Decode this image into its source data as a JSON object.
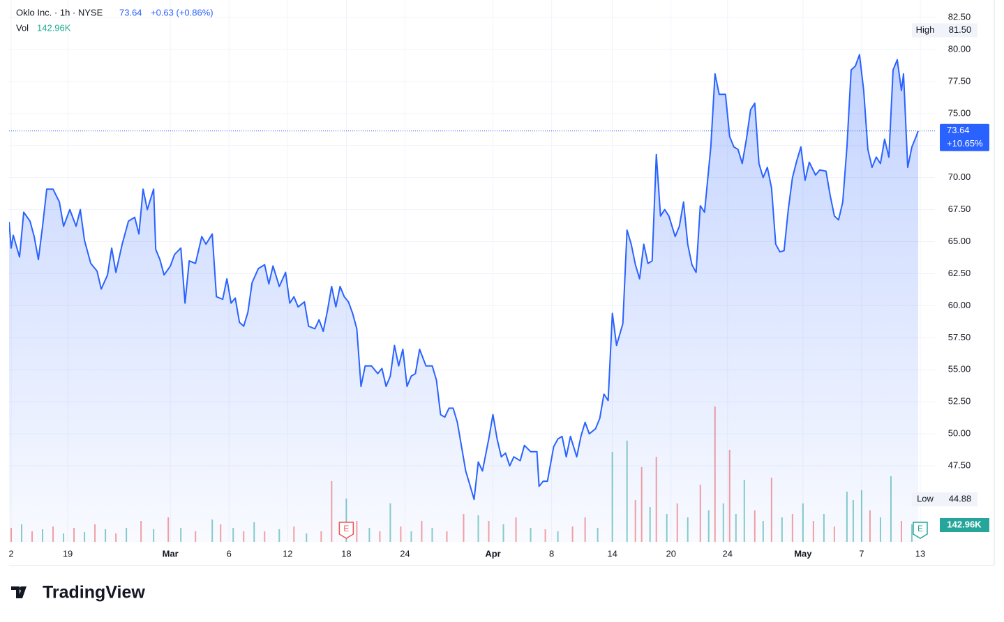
{
  "chart_data": {
    "type": "area",
    "title": "Oklo Inc. · 1h · NYSE",
    "price": "73.64",
    "change": "+0.63 (+0.86%)",
    "volume_title": "Vol",
    "volume_text": "142.96K",
    "color": "#2962ff",
    "x": [
      0,
      1,
      2,
      5,
      7,
      10,
      12,
      14,
      16,
      18,
      21,
      24,
      26,
      29,
      32,
      34,
      36,
      39,
      42,
      44,
      47,
      49,
      51,
      54,
      57,
      60,
      62,
      64,
      66,
      69,
      70,
      72,
      74,
      77,
      79,
      82,
      84,
      86,
      89,
      92,
      94,
      97,
      99,
      102,
      104,
      106,
      108,
      110,
      112,
      114,
      116,
      119,
      122,
      124,
      126,
      129,
      132,
      134,
      136,
      138,
      141,
      143,
      146,
      148,
      150,
      152,
      154,
      156,
      158,
      160,
      162,
      164,
      166,
      168,
      170,
      173,
      176,
      178,
      180,
      182,
      184,
      186,
      188,
      190,
      192,
      194,
      196,
      199,
      202,
      204,
      206,
      208,
      210,
      212,
      214,
      216,
      218,
      220,
      222,
      224,
      226,
      229,
      231,
      233,
      235,
      237,
      239,
      241,
      244,
      246,
      249,
      252,
      253,
      255,
      257,
      260,
      262,
      264,
      266,
      268,
      271,
      273,
      275,
      277,
      280,
      282,
      284,
      286,
      288,
      290,
      293,
      295,
      297,
      299,
      301,
      303,
      305,
      307,
      309,
      311,
      313,
      315,
      318,
      320,
      322,
      324,
      326,
      328,
      330,
      332,
      335,
      337,
      339,
      342,
      344,
      346,
      348,
      350,
      352,
      354,
      356,
      358,
      360,
      362,
      364,
      366,
      368,
      370,
      372,
      374,
      376,
      378,
      380,
      382,
      385,
      387,
      390,
      392,
      394,
      396,
      398,
      400,
      402,
      404,
      406,
      408,
      410,
      412,
      414,
      416,
      418,
      420,
      422,
      424,
      426,
      427,
      429,
      431,
      433,
      434
    ],
    "values": [
      66.55,
      64.5,
      65.5,
      63.8,
      67.3,
      66.6,
      65.4,
      63.6,
      66.2,
      69.1,
      69.1,
      68.1,
      66.2,
      67.5,
      66.2,
      67.5,
      65.1,
      63.3,
      62.7,
      61.3,
      62.4,
      64.5,
      62.6,
      64.8,
      66.6,
      66.9,
      65.6,
      69.1,
      67.5,
      69.1,
      64.4,
      63.6,
      62.4,
      63.1,
      64.0,
      64.5,
      60.2,
      63.5,
      63.3,
      65.4,
      64.8,
      65.6,
      60.7,
      60.5,
      62.1,
      60.2,
      60.6,
      58.7,
      58.4,
      59.5,
      61.8,
      62.9,
      63.2,
      61.7,
      63.1,
      61.5,
      62.6,
      60.2,
      60.7,
      59.9,
      60.3,
      58.4,
      58.2,
      58.9,
      58.0,
      59.6,
      61.5,
      59.9,
      61.5,
      60.7,
      60.3,
      59.4,
      58.2,
      53.7,
      55.3,
      55.3,
      54.7,
      55.1,
      53.7,
      54.5,
      56.9,
      55.3,
      56.6,
      53.7,
      54.5,
      54.7,
      56.6,
      55.3,
      55.3,
      54.2,
      51.5,
      51.3,
      52.0,
      52.0,
      50.9,
      49.0,
      47.1,
      46.0,
      44.88,
      47.8,
      47.1,
      49.6,
      51.5,
      49.6,
      48.2,
      48.5,
      47.5,
      48.2,
      47.9,
      49.1,
      48.6,
      48.6,
      45.9,
      46.3,
      46.3,
      49.0,
      49.6,
      49.8,
      48.2,
      49.8,
      48.2,
      49.8,
      50.9,
      50.0,
      50.4,
      51.2,
      53.1,
      52.6,
      59.4,
      56.9,
      58.6,
      65.9,
      64.8,
      63.2,
      62.1,
      64.8,
      63.3,
      63.5,
      71.8,
      67.0,
      67.5,
      67.0,
      65.4,
      66.2,
      68.1,
      64.8,
      63.2,
      62.6,
      67.8,
      67.3,
      72.4,
      78.1,
      76.5,
      76.5,
      73.2,
      72.4,
      72.2,
      71.1,
      73.0,
      75.3,
      75.8,
      71.1,
      70.0,
      70.8,
      69.2,
      64.8,
      64.2,
      64.3,
      67.5,
      70.0,
      71.3,
      72.4,
      69.8,
      71.2,
      70.2,
      70.6,
      70.5,
      68.6,
      67.0,
      66.7,
      68.1,
      72.4,
      78.4,
      78.7,
      79.6,
      76.8,
      72.2,
      70.8,
      71.6,
      71.1,
      73.0,
      71.6,
      78.4,
      79.2,
      76.8,
      78.1,
      70.8,
      72.4,
      73.2,
      73.64
    ],
    "xlim": [
      0,
      442
    ],
    "xticks": [
      {
        "value": 1,
        "label": "2"
      },
      {
        "value": 28,
        "label": "19"
      },
      {
        "value": 77,
        "label": "Mar"
      },
      {
        "value": 105,
        "label": "6"
      },
      {
        "value": 133,
        "label": "12"
      },
      {
        "value": 161,
        "label": "18"
      },
      {
        "value": 189,
        "label": "24"
      },
      {
        "value": 231,
        "label": "Apr"
      },
      {
        "value": 259,
        "label": "8"
      },
      {
        "value": 288,
        "label": "14"
      },
      {
        "value": 316,
        "label": "20"
      },
      {
        "value": 343,
        "label": "24"
      },
      {
        "value": 379,
        "label": "May"
      },
      {
        "value": 407,
        "label": "7"
      },
      {
        "value": 435,
        "label": "13"
      }
    ],
    "ylim": [
      41.57,
      83.59
    ],
    "yticks": [
      {
        "value": 47.5,
        "label": "47.50"
      },
      {
        "value": 50,
        "label": "50.00"
      },
      {
        "value": 52.5,
        "label": "52.50"
      },
      {
        "value": 55,
        "label": "55.00"
      },
      {
        "value": 57.5,
        "label": "57.50"
      },
      {
        "value": 60,
        "label": "60.00"
      },
      {
        "value": 62.5,
        "label": "62.50"
      },
      {
        "value": 65,
        "label": "65.00"
      },
      {
        "value": 67.5,
        "label": "67.50"
      },
      {
        "value": 70,
        "label": "70.00"
      },
      {
        "value": 72.5,
        "label": "72.50"
      },
      {
        "value": 75,
        "label": "75.00"
      },
      {
        "value": 77.5,
        "label": "77.50"
      },
      {
        "value": 80,
        "label": "80.00"
      },
      {
        "value": 82.5,
        "label": "82.50"
      }
    ],
    "grid": true,
    "last": {
      "value": 73.64,
      "change": "+10.65%"
    },
    "high": {
      "label": "High",
      "value": 81.5,
      "value_label": "81.50"
    },
    "low": {
      "label": "Low",
      "value": 44.88
    },
    "volume": {
      "x": [
        1,
        6,
        11,
        16,
        21,
        26,
        31,
        36,
        41,
        46,
        51,
        56,
        63,
        69,
        76,
        82,
        89,
        97,
        101,
        107,
        112,
        117,
        122,
        129,
        136,
        142,
        149,
        154,
        161,
        166,
        172,
        177,
        182,
        187,
        192,
        197,
        202,
        209,
        217,
        224,
        229,
        236,
        242,
        249,
        256,
        262,
        269,
        275,
        281,
        288,
        295,
        299,
        302,
        306,
        309,
        314,
        319,
        324,
        330,
        334,
        337,
        341,
        344,
        347,
        351,
        356,
        360,
        364,
        369,
        374,
        379,
        384,
        389,
        394,
        400,
        403,
        407,
        411,
        416,
        421,
        426,
        431
      ],
      "values": [
        114,
        143,
        86,
        103,
        125,
        68,
        114,
        80,
        143,
        103,
        68,
        114,
        171,
        103,
        200,
        114,
        86,
        182,
        143,
        114,
        86,
        160,
        86,
        103,
        125,
        68,
        86,
        496,
        353,
        171,
        114,
        86,
        314,
        125,
        86,
        171,
        114,
        86,
        228,
        217,
        171,
        143,
        200,
        114,
        103,
        86,
        125,
        200,
        114,
        735,
        827,
        342,
        610,
        285,
        695,
        228,
        314,
        200,
        467,
        257,
        1106,
        314,
        752,
        228,
        507,
        257,
        171,
        524,
        200,
        228,
        314,
        171,
        228,
        125,
        410,
        342,
        422,
        257,
        200,
        536,
        171,
        142.96
      ],
      "up": [
        false,
        true,
        false,
        true,
        false,
        true,
        false,
        true,
        false,
        true,
        false,
        true,
        false,
        true,
        false,
        true,
        false,
        true,
        false,
        true,
        false,
        true,
        false,
        true,
        false,
        true,
        false,
        false,
        true,
        false,
        true,
        false,
        true,
        false,
        true,
        false,
        true,
        false,
        false,
        true,
        false,
        true,
        false,
        true,
        false,
        true,
        false,
        false,
        true,
        true,
        true,
        false,
        false,
        true,
        false,
        true,
        false,
        true,
        false,
        true,
        false,
        true,
        false,
        true,
        true,
        false,
        true,
        false,
        true,
        false,
        true,
        false,
        true,
        false,
        true,
        true,
        true,
        false,
        true,
        true,
        false,
        true
      ],
      "up_color": "#26a69a",
      "down_color": "#ef5350",
      "last_label": "142.96K"
    },
    "y2lim": [
      0,
      4400
    ],
    "earnings": [
      {
        "x": 161,
        "label": "E",
        "color": "#ef5350"
      },
      {
        "x": 435,
        "label": "E",
        "color": "#26a69a"
      }
    ]
  },
  "brand": "TradingView"
}
